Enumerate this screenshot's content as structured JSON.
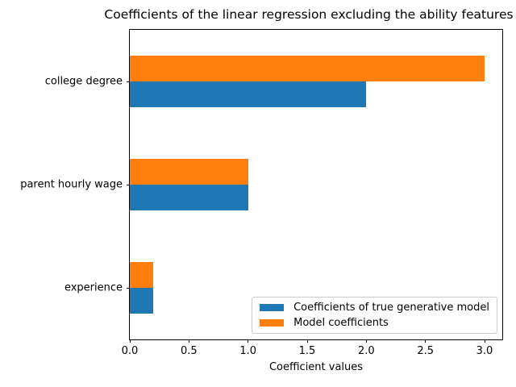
{
  "chart_data": {
    "type": "bar",
    "orientation": "horizontal",
    "title": "Coefficients of the linear regression excluding the ability features",
    "xlabel": "Coefficient values",
    "ylabel": "",
    "categories": [
      "college degree",
      "parent hourly wage",
      "experience"
    ],
    "series": [
      {
        "name": "Coefficients of true generative model",
        "color": "#1f77b4",
        "values": [
          2.0,
          1.0,
          0.2
        ]
      },
      {
        "name": "Model coefficients",
        "color": "#ff7f0e",
        "values": [
          3.0,
          1.0,
          0.2
        ]
      }
    ],
    "xlim": [
      0,
      3.15
    ],
    "xticks": [
      0.0,
      0.5,
      1.0,
      1.5,
      2.0,
      2.5,
      3.0
    ],
    "grid": false,
    "legend_position": "lower right",
    "axis_color": "#000000",
    "legend_border_color": "#cccccc"
  }
}
